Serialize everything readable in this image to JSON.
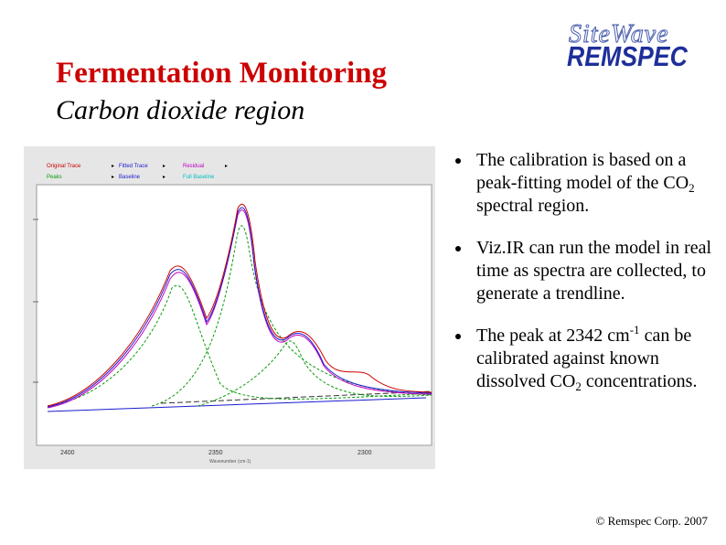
{
  "slide": {
    "title": "Fermentation Monitoring",
    "subtitle": "Carbon dioxide region",
    "footer": "© Remspec Corp. 2007"
  },
  "logo": {
    "script": "SiteWave",
    "main": "REMSPEC"
  },
  "bullets": [
    {
      "before": "The calibration is based on a peak-fitting model of the CO",
      "sub": "2",
      "after": " spectral region."
    },
    {
      "before": "Viz.IR can run the model in real time as spectra are collected, to generate a trendline.",
      "sub": "",
      "after": ""
    },
    {
      "before": "The peak at 2342 cm",
      "sup": "-1",
      "middle": " can be calibrated against known dissolved CO",
      "sub": "2",
      "after": " concentrations."
    }
  ],
  "screenshot": {
    "legend": [
      {
        "label": "Original Trace",
        "color": "#cc0000"
      },
      {
        "label": "Fitted Trace",
        "color": "#1a1ad0"
      },
      {
        "label": "Residual",
        "color": "#c000c0"
      },
      {
        "label": "Peaks",
        "color": "#0a9a0a"
      },
      {
        "label": "Baseline",
        "color": "#1a1ad0"
      },
      {
        "label": "Full Baseline",
        "color": "#00c0c0"
      }
    ],
    "xticks": [
      "2400",
      "2350",
      "2300"
    ],
    "xlabel": "Wavenumber (cm-1)"
  }
}
